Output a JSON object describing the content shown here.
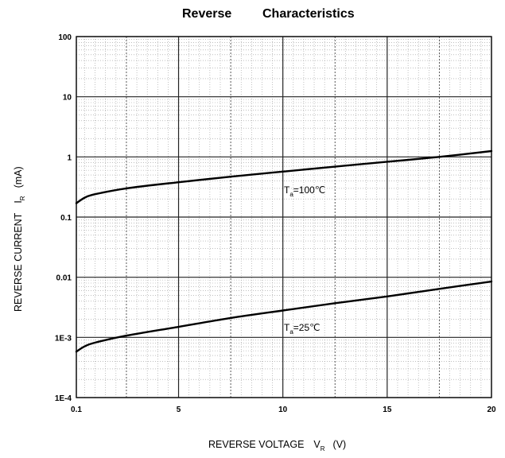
{
  "chart_data": {
    "type": "line",
    "title_part1": "Reverse",
    "title_part2": "Characteristics",
    "xlabel": "REVERSE VOLTAGE",
    "xlabel_symbol": "V",
    "xlabel_subscript": "R",
    "xlabel_unit": "(V)",
    "ylabel": "REVERSE CURRENT",
    "ylabel_symbol": "I",
    "ylabel_subscript": "R",
    "ylabel_unit": "(mA)",
    "xlim": [
      0.1,
      20
    ],
    "ylim": [
      0.0001,
      100
    ],
    "yscale": "log",
    "grid": true,
    "x_ticks": [
      0.1,
      5,
      10,
      15,
      20
    ],
    "x_tick_labels": [
      "0.1",
      "5",
      "10",
      "15",
      "20"
    ],
    "y_ticks": [
      0.0001,
      0.001,
      0.01,
      0.1,
      1,
      10,
      100
    ],
    "y_tick_labels": [
      "1E-4",
      "1E-3",
      "0.01",
      "0.1",
      "1",
      "10",
      "100"
    ],
    "series": [
      {
        "annotation_symbol": "T",
        "annotation_subscript": "a",
        "annotation_value": "=100℃",
        "x": [
          0.1,
          0.5,
          1,
          2.5,
          5,
          7.5,
          10,
          12.5,
          15,
          17.5,
          20
        ],
        "y": [
          0.17,
          0.21,
          0.24,
          0.3,
          0.38,
          0.47,
          0.57,
          0.69,
          0.83,
          1.0,
          1.25
        ]
      },
      {
        "annotation_symbol": "T",
        "annotation_subscript": "a",
        "annotation_value": "=25℃",
        "x": [
          0.1,
          0.5,
          1,
          2.5,
          5,
          7.5,
          10,
          12.5,
          15,
          17.5,
          20
        ],
        "y": [
          0.00058,
          0.00071,
          0.00082,
          0.00107,
          0.0015,
          0.0021,
          0.0028,
          0.0037,
          0.0048,
          0.0064,
          0.0085
        ]
      }
    ]
  }
}
